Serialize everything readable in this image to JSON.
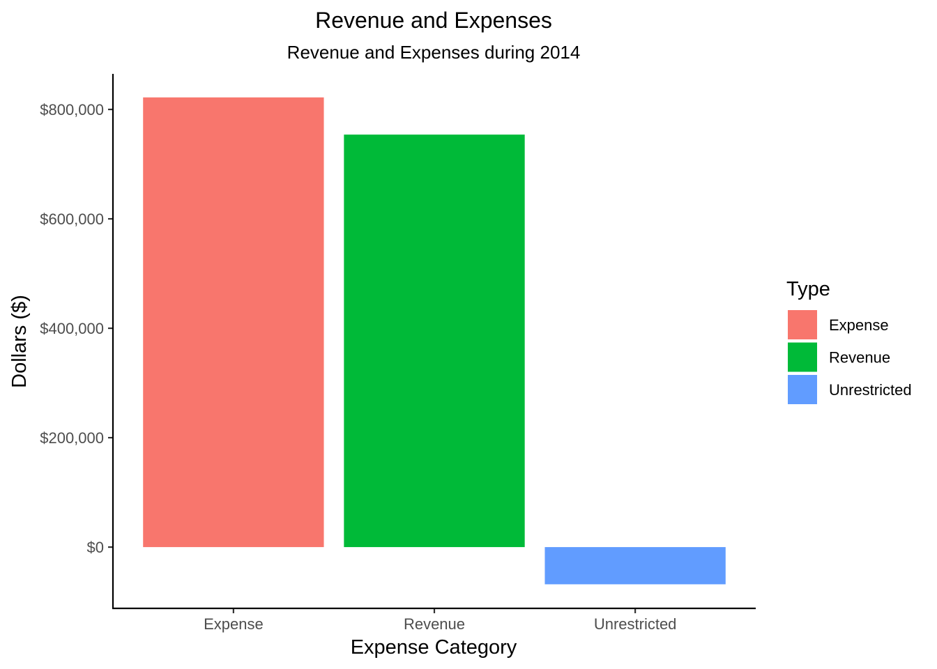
{
  "chart_data": {
    "type": "bar",
    "title": "Revenue and Expenses",
    "subtitle": "Revenue and Expenses during 2014",
    "xlabel": "Expense Category",
    "ylabel": "Dollars ($)",
    "categories": [
      "Expense",
      "Revenue",
      "Unrestricted"
    ],
    "values": [
      822000,
      754000,
      -68000
    ],
    "colors": [
      "#F8766D",
      "#00BA38",
      "#619CFF"
    ],
    "ylim": [
      -112000,
      865000
    ],
    "yticks": [
      0,
      200000,
      400000,
      600000,
      800000
    ],
    "ytick_labels": [
      "$0",
      "$200,000",
      "$400,000",
      "$600,000",
      "$800,000"
    ],
    "grid": false,
    "legend": {
      "title": "Type",
      "position": "right",
      "entries": [
        "Expense",
        "Revenue",
        "Unrestricted"
      ]
    }
  }
}
